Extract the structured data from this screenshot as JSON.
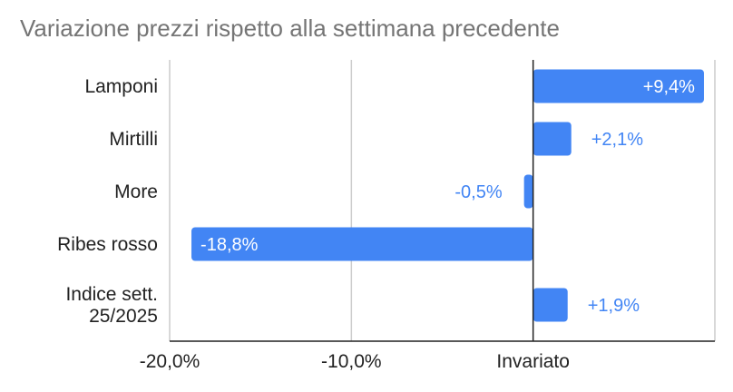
{
  "chart_data": {
    "type": "bar",
    "orientation": "horizontal",
    "title": "Variazione prezzi rispetto alla settimana precedente",
    "categories": [
      "Lamponi",
      "Mirtilli",
      "More",
      "Ribes rosso",
      "Indice sett. 25/2025"
    ],
    "category_lines": [
      [
        "Lamponi"
      ],
      [
        "Mirtilli"
      ],
      [
        "More"
      ],
      [
        "Ribes rosso"
      ],
      [
        "Indice sett.",
        "25/2025"
      ]
    ],
    "values": [
      9.4,
      2.1,
      -0.5,
      -18.8,
      1.9
    ],
    "data_labels": [
      "+9,4%",
      "+2,1%",
      "-0,5%",
      "-18,8%",
      "+1,9%"
    ],
    "x_ticks": [
      {
        "value": -20,
        "label": "-20,0%"
      },
      {
        "value": -10,
        "label": "-10,0%"
      },
      {
        "value": 0,
        "label": "Invariato"
      }
    ],
    "xlim": [
      -20,
      10
    ],
    "grid": true,
    "legend": "none",
    "bar_color": "#4285f4",
    "label_inside_color": "#ffffff",
    "label_outside_color": "#4285f4",
    "gridline_color": "#cccccc",
    "axis_color": "#222222"
  }
}
